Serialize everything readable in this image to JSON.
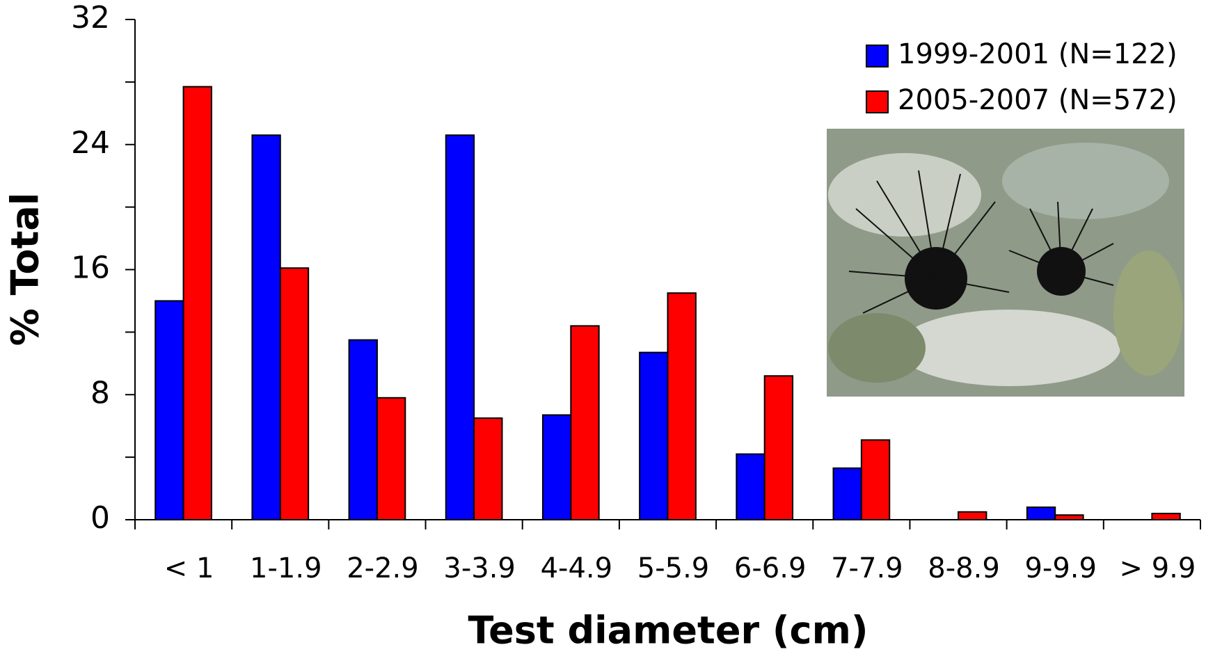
{
  "chart_data": {
    "type": "bar",
    "x_label": "Test diameter (cm)",
    "y_label": "% Total",
    "categories": [
      "< 1",
      "1-1.9",
      "2-2.9",
      "3-3.9",
      "4-4.9",
      "5-5.9",
      "6-6.9",
      "7-7.9",
      "8-8.9",
      "9-9.9",
      "> 9.9"
    ],
    "series": [
      {
        "name": "1999-2001 (N=122)",
        "color": "#0000ff",
        "values": [
          14.0,
          24.6,
          11.5,
          24.6,
          6.7,
          10.7,
          4.2,
          3.3,
          0,
          0.8,
          0
        ]
      },
      {
        "name": "2005-2007 (N=572)",
        "color": "#ff0000",
        "values": [
          27.7,
          16.1,
          7.8,
          6.5,
          12.4,
          14.5,
          9.2,
          5.1,
          0.5,
          0.3,
          0.4
        ]
      }
    ],
    "ylim": [
      0,
      32
    ],
    "yticks": [
      0,
      8,
      16,
      24,
      32
    ],
    "legend": "upper right"
  }
}
